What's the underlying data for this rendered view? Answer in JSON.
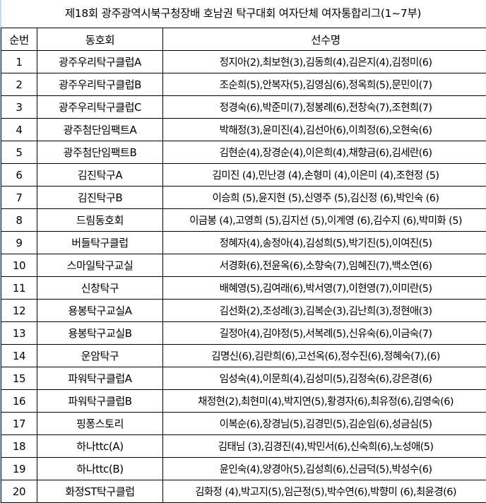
{
  "title": "제18회 광주광역시북구청장배 호남권 탁구대회 여자단체 여자통합리그(1~7부)",
  "headers": {
    "no": "순번",
    "club": "동호회",
    "players": "선수명"
  },
  "rows": [
    {
      "no": "1",
      "club": "광주우리탁구클럽A",
      "players": "정지아(2),최보현(3),김동희(4),김은지(4),김정미(6)"
    },
    {
      "no": "2",
      "club": "광주우리탁구클럽B",
      "players": "조순희(5),안복자(5),김영심(6),정옥희(5),문민이(7)"
    },
    {
      "no": "3",
      "club": "광주우리탁구클럽C",
      "players": "정경숙(6),박준미(7),정봉례(6),전창숙(7),조현희(7)"
    },
    {
      "no": "4",
      "club": "광주첨단임팩트A",
      "players": "박해정(3),윤미진(4),김선아(6),이희정(6),오현숙(6)"
    },
    {
      "no": "5",
      "club": "광주첨단임팩트B",
      "players": "김현순(4),장경순(4),이은희(4),채향금(6),김세란(6)"
    },
    {
      "no": "6",
      "club": "김진탁구A",
      "players": "김미진 (4),민난경 (4),손형미 (4),이은미 (4),조현정 (5)"
    },
    {
      "no": "7",
      "club": "김진탁구B",
      "players": "이승희 (5),윤지현 (5),신영주 (5),김신정 (6),박인숙 (6)"
    },
    {
      "no": "8",
      "club": "드림동호회",
      "players": "이금봉 (4),고영희 (5),김지선 (5),이계영 (6),김수지 (6),박미화 (5)"
    },
    {
      "no": "9",
      "club": "버들탁구클럽",
      "players": "정혜자(4),송정아(4),김성희(5),박기진(5),이여진(5)"
    },
    {
      "no": "10",
      "club": "스마일탁구교실",
      "players": "서경화(6),전윤옥(6),소향숙(7),임혜진(7),백소연(6)"
    },
    {
      "no": "11",
      "club": "신창탁구",
      "players": "배혜영(5),김여래(6),박서영(7),이현영(7),이미란(5)"
    },
    {
      "no": "12",
      "club": "용봉탁구교실A",
      "players": "김선화(2),조성례(3),김복순(3),김난희(3),정현애(3)"
    },
    {
      "no": "13",
      "club": "용봉탁구교실B",
      "players": "길정아(4),김야정(5),서복례(5),신유숙(6),이금숙(7)"
    },
    {
      "no": "14",
      "club": "운암탁구",
      "players": "김명신(6),김란희(6),고선옥(6),정수진(6),정혜숙(7),(6)"
    },
    {
      "no": "15",
      "club": "파워탁구클럽A",
      "players": "임성숙(4),이문희(4),김성미(5),김정숙(6),강은경(6)"
    },
    {
      "no": "16",
      "club": "파워탁구클럽B",
      "players": "채정현(2),최현미(4),박지연(5),황경자(6),최유정(6),김영숙(6)"
    },
    {
      "no": "17",
      "club": "핑퐁스토리",
      "players": "이복순(6),장경님(5),김경민(5),김순임(6),성금심(5)"
    },
    {
      "no": "18",
      "club": "하나ttc(A)",
      "players": "김태님 (3),김경진(4),박민서(6),신숙희(6),노성애(5)"
    },
    {
      "no": "19",
      "club": "하나ttc(B)",
      "players": "윤인숙(4),양경아(5),김성희(6),신금덕(5),박성수(6)"
    },
    {
      "no": "20",
      "club": "화정ST탁구클럽",
      "players": "김화정 (4),박고지(5),임근정(5),박수연(6),박향미 (6),최윤경(6)"
    }
  ]
}
